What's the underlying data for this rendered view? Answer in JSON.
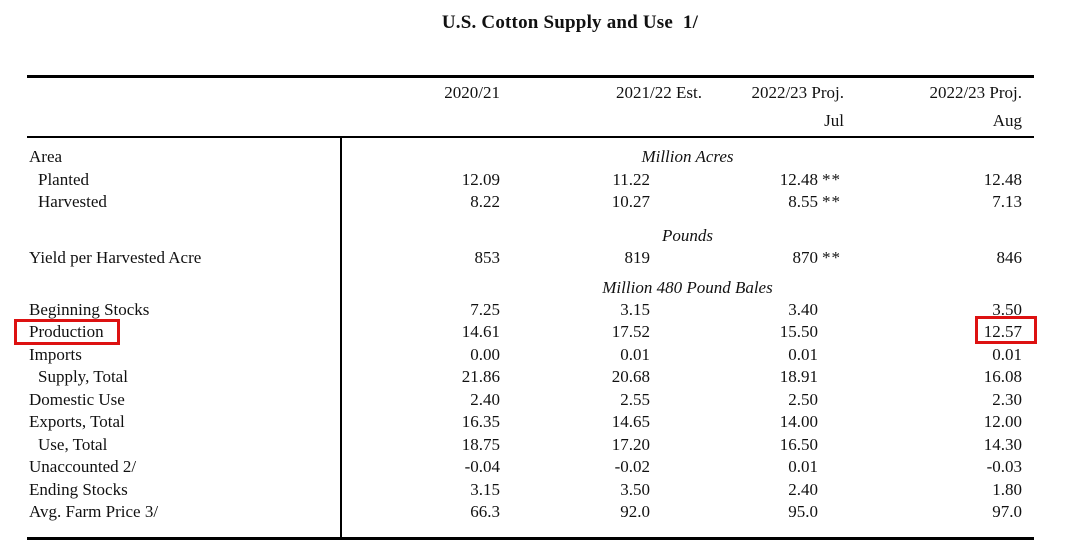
{
  "title": "U.S. Cotton Supply and Use  1/",
  "columns": {
    "c1": "2020/21",
    "c2": "2021/22 Est.",
    "c3": "2022/23 Proj.",
    "c3_sub": "Jul",
    "c4": "2022/23 Proj.",
    "c4_sub": "Aug"
  },
  "section_area_label": "Area",
  "units": {
    "area": "Million Acres",
    "yield": "Pounds",
    "stocks": "Million 480 Pound Bales"
  },
  "rows": [
    {
      "label": "Planted",
      "v": [
        "12.09",
        "11.22",
        "12.48",
        "12.48"
      ],
      "m3": "**"
    },
    {
      "label": "Harvested",
      "v": [
        "8.22",
        "10.27",
        "8.55",
        "7.13"
      ],
      "m3": "**"
    },
    {
      "label": "Yield per Harvested Acre",
      "v": [
        "853",
        "819",
        "870",
        "846"
      ],
      "m3": "**"
    },
    {
      "label": "Beginning Stocks",
      "v": [
        "7.25",
        "3.15",
        "3.40",
        "3.50"
      ]
    },
    {
      "label": "Production",
      "v": [
        "14.61",
        "17.52",
        "15.50",
        "12.57"
      ]
    },
    {
      "label": "Imports",
      "v": [
        "0.00",
        "0.01",
        "0.01",
        "0.01"
      ]
    },
    {
      "label": "Supply, Total",
      "v": [
        "21.86",
        "20.68",
        "18.91",
        "16.08"
      ]
    },
    {
      "label": "Domestic Use",
      "v": [
        "2.40",
        "2.55",
        "2.50",
        "2.30"
      ]
    },
    {
      "label": "Exports, Total",
      "v": [
        "16.35",
        "14.65",
        "14.00",
        "12.00"
      ]
    },
    {
      "label": "Use, Total",
      "v": [
        "18.75",
        "17.20",
        "16.50",
        "14.30"
      ]
    },
    {
      "label": "Unaccounted 2/",
      "v": [
        "-0.04",
        "-0.02",
        "0.01",
        "-0.03"
      ]
    },
    {
      "label": "Ending Stocks",
      "v": [
        "3.15",
        "3.50",
        "2.40",
        "1.80"
      ]
    },
    {
      "label": "Avg. Farm Price 3/",
      "v": [
        "66.3",
        "92.0",
        "95.0",
        "97.0"
      ]
    }
  ],
  "annotations": {
    "highlight_color": "#dd1111",
    "highlighted_row_label": "Production",
    "highlighted_value": "12.57",
    "highlighted_value_column": "2022/23 Proj. Aug"
  }
}
